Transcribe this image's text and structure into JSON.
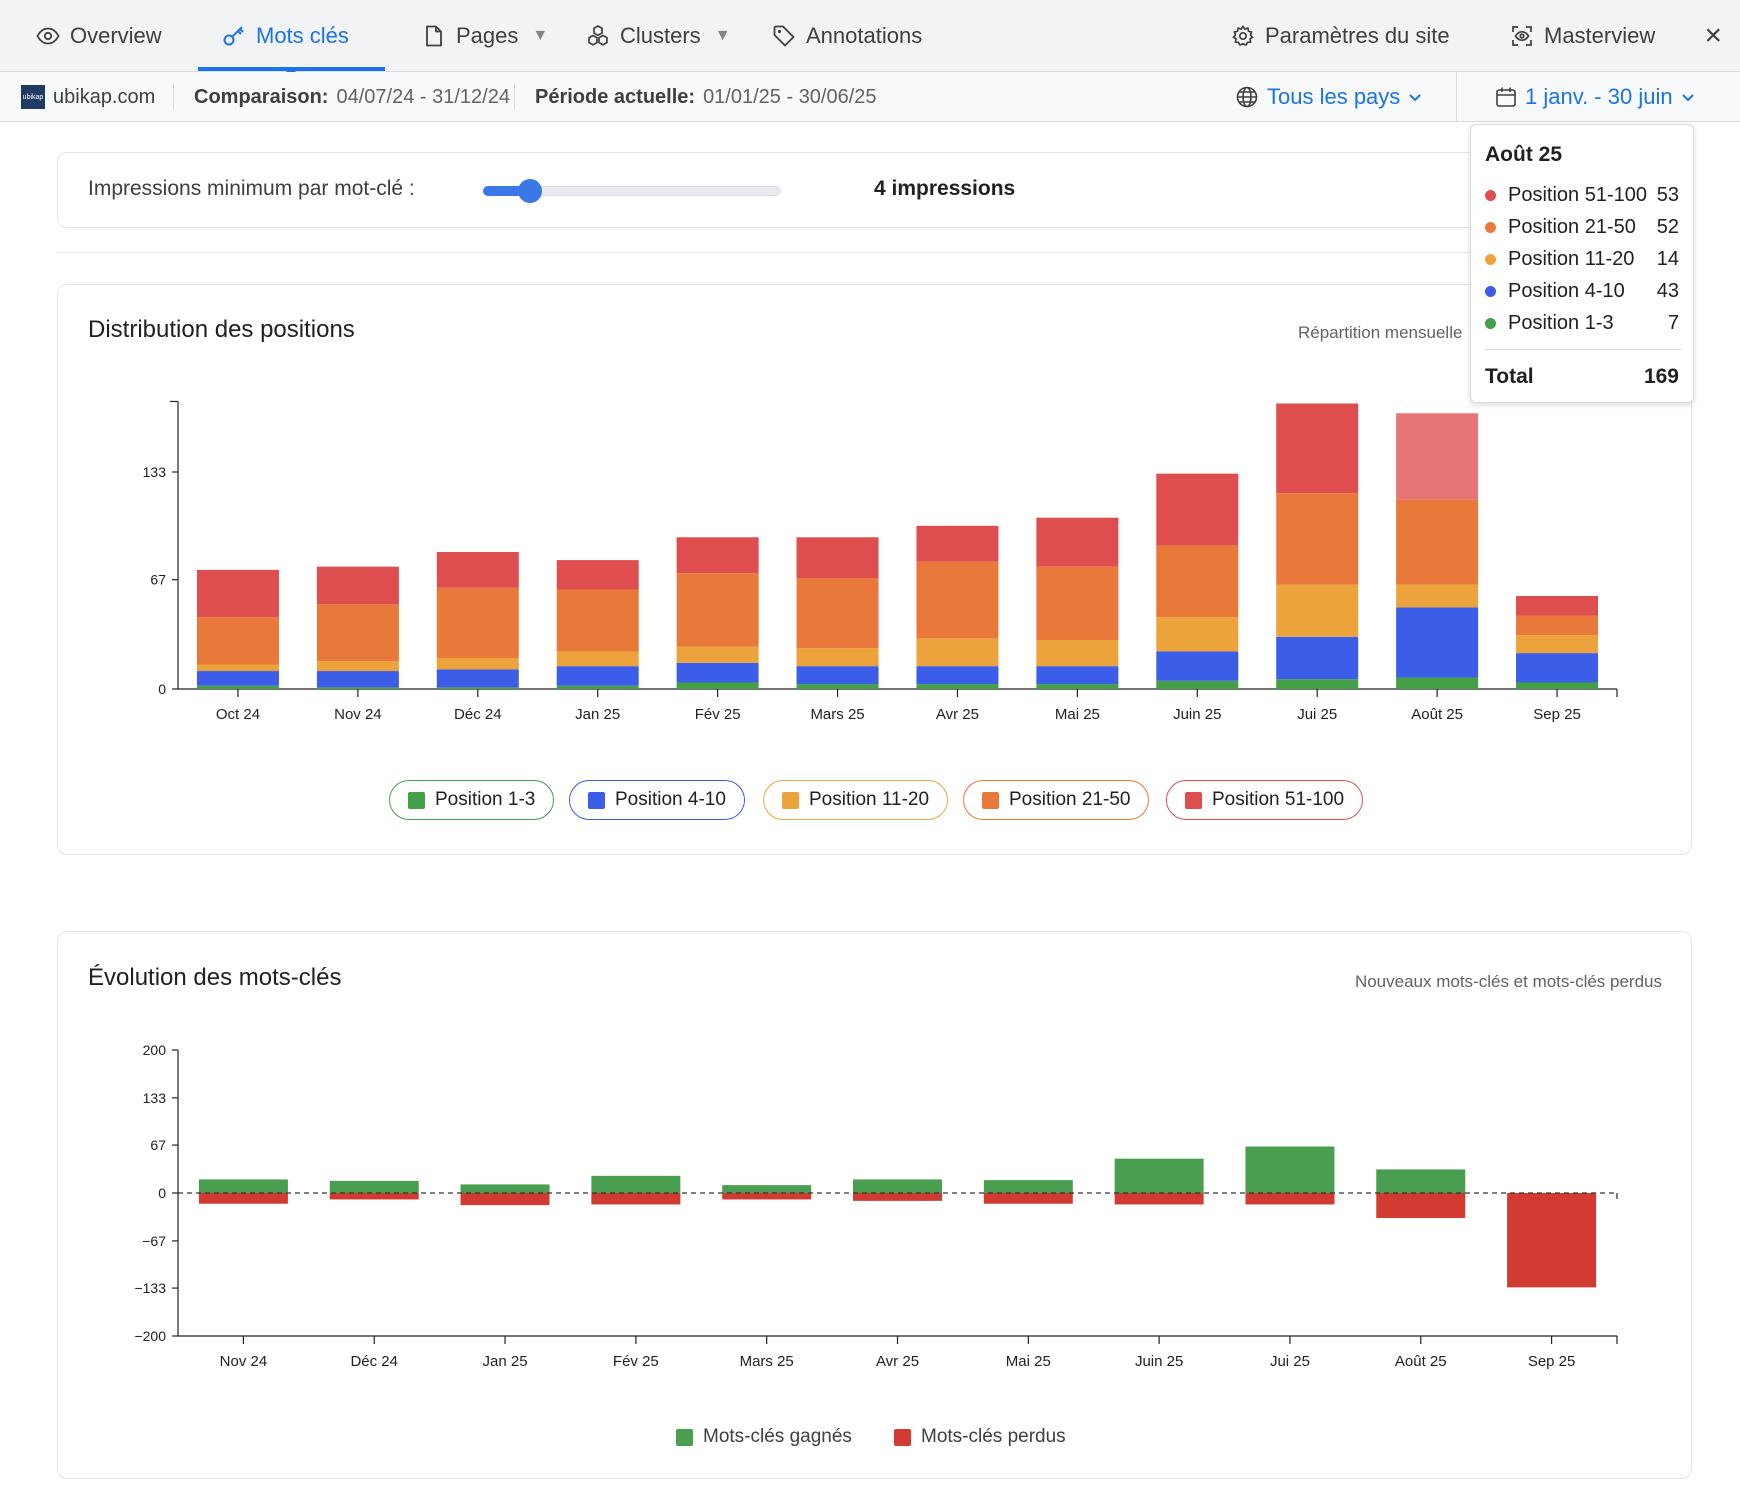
{
  "nav": {
    "tabs": [
      {
        "label": "Overview",
        "icon": "eye-icon"
      },
      {
        "label": "Mots clés",
        "icon": "key-icon",
        "active": true
      },
      {
        "label": "Pages",
        "icon": "page-icon",
        "dropdown": true
      },
      {
        "label": "Clusters",
        "icon": "clusters-icon",
        "dropdown": true
      },
      {
        "label": "Annotations",
        "icon": "tag-icon"
      }
    ],
    "settings_label": "Paramètres du site",
    "masterview_label": "Masterview",
    "close_label": "×"
  },
  "subbar": {
    "logo_text": "ubikap",
    "site": "ubikap.com",
    "comparison_label": "Comparaison:",
    "comparison_value": "04/07/24 - 31/12/24",
    "current_label": "Période actuelle:",
    "current_value": "01/01/25 - 30/06/25",
    "country_label": "Tous les pays",
    "date_range_label": "1 janv. - 30 juin"
  },
  "filter": {
    "label": "Impressions minimum par mot-clé :",
    "value_text": "4 impressions",
    "slider_value": 4,
    "slider_fraction": 0.16
  },
  "colors": {
    "pos_1_3": "#43a047",
    "pos_4_10": "#3b5de7",
    "pos_11_20": "#eda33b",
    "pos_21_50": "#e8793a",
    "pos_51_100": "#df4e4e",
    "gained": "#4a9e50",
    "lost": "#d23b32",
    "accent": "#1a73e8"
  },
  "distribution": {
    "title": "Distribution des positions",
    "subtitle": "Répartition mensuelle",
    "legend": [
      "Position 1-3",
      "Position 4-10",
      "Position 11-20",
      "Position 21-50",
      "Position 51-100"
    ]
  },
  "tooltip": {
    "title": "Août 25",
    "rows": [
      {
        "label": "Position 51-100",
        "value": "53",
        "color": "#df4e4e"
      },
      {
        "label": "Position 21-50",
        "value": "52",
        "color": "#e8793a"
      },
      {
        "label": "Position 11-20",
        "value": "14",
        "color": "#eda33b"
      },
      {
        "label": "Position 4-10",
        "value": "43",
        "color": "#3b5de7"
      },
      {
        "label": "Position 1-3",
        "value": "7",
        "color": "#43a047"
      }
    ],
    "total_label": "Total",
    "total_value": "169"
  },
  "evolution": {
    "title": "Évolution des mots-clés",
    "subtitle": "Nouveaux mots-clés et mots-clés perdus",
    "legend": [
      "Mots-clés gagnés",
      "Mots-clés perdus"
    ]
  },
  "chart_data": [
    {
      "type": "bar",
      "stacked": true,
      "title": "Distribution des positions",
      "categories": [
        "Oct 24",
        "Nov 24",
        "Déc 24",
        "Jan 25",
        "Fév 25",
        "Mars 25",
        "Avr 25",
        "Mai 25",
        "Juin 25",
        "Jui 25",
        "Août 25",
        "Sep 25"
      ],
      "ylim": [
        0,
        175
      ],
      "yticks": [
        0,
        67,
        133
      ],
      "grid": false,
      "legend_position": "bottom",
      "series": [
        {
          "name": "Position 1-3",
          "color": "#43a047",
          "values": [
            2,
            1,
            1,
            2,
            4,
            3,
            3,
            3,
            5,
            6,
            7,
            4
          ]
        },
        {
          "name": "Position 4-10",
          "color": "#3b5de7",
          "values": [
            9,
            10,
            11,
            12,
            12,
            11,
            11,
            11,
            18,
            26,
            43,
            18
          ]
        },
        {
          "name": "Position 11-20",
          "color": "#eda33b",
          "values": [
            4,
            6,
            7,
            9,
            10,
            11,
            17,
            16,
            21,
            32,
            14,
            11
          ]
        },
        {
          "name": "Position 21-50",
          "color": "#e8793a",
          "values": [
            29,
            35,
            43,
            38,
            45,
            43,
            47,
            45,
            44,
            56,
            52,
            12
          ]
        },
        {
          "name": "Position 51-100",
          "color": "#df4e4e",
          "values": [
            29,
            23,
            22,
            18,
            22,
            25,
            22,
            30,
            44,
            55,
            53,
            12
          ]
        }
      ]
    },
    {
      "type": "bar",
      "title": "Évolution des mots-clés",
      "categories": [
        "Nov 24",
        "Déc 24",
        "Jan 25",
        "Fév 25",
        "Mars 25",
        "Avr 25",
        "Mai 25",
        "Juin 25",
        "Jui 25",
        "Août 25",
        "Sep 25"
      ],
      "ylim": [
        -200,
        200
      ],
      "yticks": [
        200,
        133,
        67,
        0,
        -67,
        -133,
        -200
      ],
      "ytick_labels": [
        "200",
        "133",
        "67",
        "0",
        "−67",
        "−133",
        "−200"
      ],
      "grid": false,
      "legend_position": "bottom",
      "series": [
        {
          "name": "Mots-clés gagnés",
          "color": "#4a9e50",
          "values": [
            19,
            17,
            12,
            24,
            11,
            19,
            18,
            48,
            65,
            33,
            0
          ]
        },
        {
          "name": "Mots-clés perdus",
          "color": "#d23b32",
          "values": [
            -15,
            -9,
            -17,
            -16,
            -9,
            -11,
            -15,
            -16,
            -16,
            -35,
            -132
          ]
        }
      ]
    }
  ]
}
